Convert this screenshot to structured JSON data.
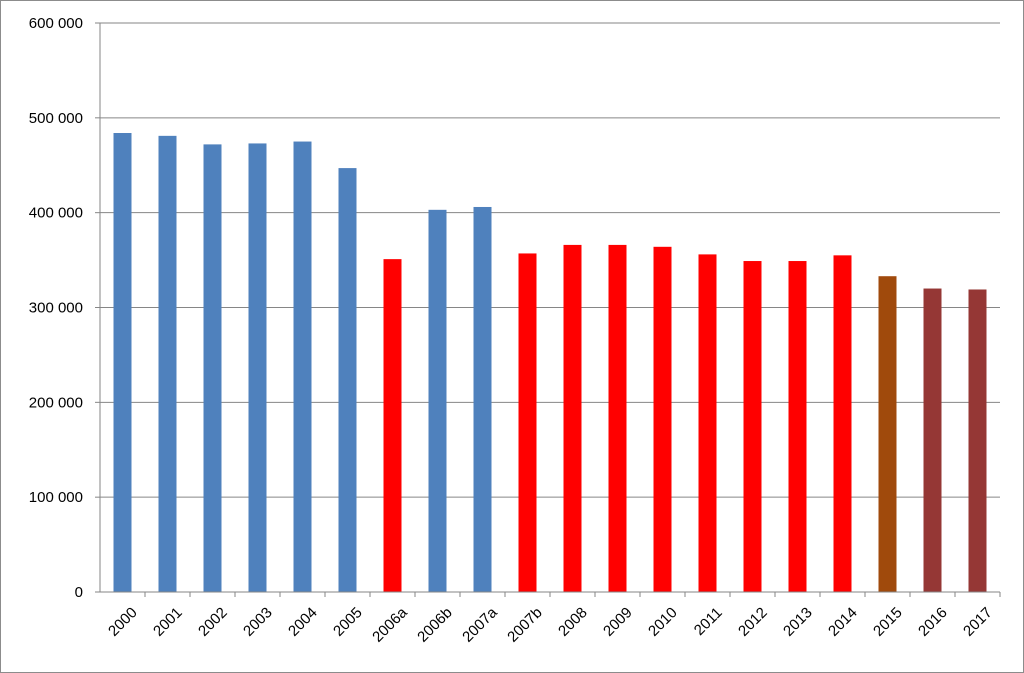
{
  "chart_data": {
    "type": "bar",
    "title": "",
    "xlabel": "",
    "ylabel": "",
    "ylim": [
      0,
      600000
    ],
    "yticks": [
      0,
      100000,
      200000,
      300000,
      400000,
      500000,
      600000
    ],
    "ytick_labels": [
      "0",
      "100 000",
      "200 000",
      "300 000",
      "400 000",
      "500 000",
      "600 000"
    ],
    "grid": true,
    "legend": "none",
    "categories": [
      "2000",
      "2001",
      "2002",
      "2003",
      "2004",
      "2005",
      "2006a",
      "2006b",
      "2007a",
      "2007b",
      "2008",
      "2009",
      "2010",
      "2011",
      "2012",
      "2013",
      "2014",
      "2015",
      "2016",
      "2017"
    ],
    "values": [
      484000,
      481000,
      472000,
      473000,
      475000,
      447000,
      351000,
      403000,
      406000,
      357000,
      366000,
      366000,
      364000,
      356000,
      349000,
      349000,
      355000,
      333000,
      320000,
      319000
    ],
    "bar_colors": [
      "#4f81bd",
      "#4f81bd",
      "#4f81bd",
      "#4f81bd",
      "#4f81bd",
      "#4f81bd",
      "#ff0000",
      "#4f81bd",
      "#4f81bd",
      "#ff0000",
      "#ff0000",
      "#ff0000",
      "#ff0000",
      "#ff0000",
      "#ff0000",
      "#ff0000",
      "#ff0000",
      "#a04a0c",
      "#953735",
      "#953735"
    ]
  }
}
